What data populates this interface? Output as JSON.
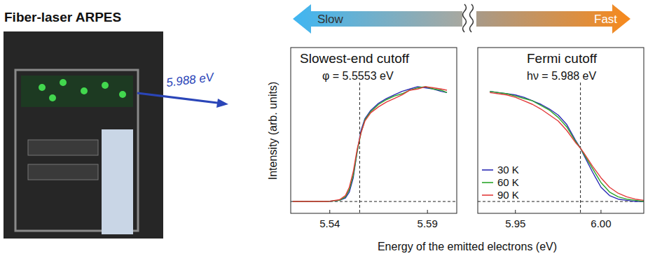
{
  "title": "Fiber-laser ARPES",
  "photo_label": "5.988 eV",
  "speed_arrow": {
    "left": "Slow",
    "right": "Fast"
  },
  "x_label": "Energy of the emitted electrons (eV)",
  "y_label": "Intensity (arb. units)",
  "chart_data": [
    {
      "type": "line",
      "title": "Slowest-end cutoff",
      "annotation": "φ = 5.5553 eV",
      "x": [
        5.521,
        5.527,
        5.533,
        5.539,
        5.545,
        5.548,
        5.55,
        5.552,
        5.554,
        5.556,
        5.558,
        5.561,
        5.565,
        5.569,
        5.573,
        5.577,
        5.581,
        5.585,
        5.589,
        5.593,
        5.597,
        5.6
      ],
      "series": [
        {
          "color": "#2b2bb5",
          "values": [
            0,
            0,
            0,
            0,
            0.01,
            0.03,
            0.08,
            0.2,
            0.42,
            0.6,
            0.7,
            0.77,
            0.83,
            0.87,
            0.9,
            0.93,
            0.95,
            0.97,
            0.96,
            0.95,
            0.93,
            0.92
          ]
        },
        {
          "color": "#2aa52a",
          "values": [
            0,
            0,
            0,
            0,
            0.01,
            0.04,
            0.1,
            0.22,
            0.42,
            0.58,
            0.69,
            0.76,
            0.82,
            0.86,
            0.89,
            0.91,
            0.94,
            0.96,
            0.97,
            0.95,
            0.94,
            0.92
          ]
        },
        {
          "color": "#e23a3a",
          "values": [
            0,
            0,
            0,
            0,
            0.015,
            0.05,
            0.12,
            0.25,
            0.44,
            0.58,
            0.68,
            0.75,
            0.8,
            0.84,
            0.87,
            0.9,
            0.94,
            0.95,
            0.97,
            0.96,
            0.95,
            0.94
          ]
        }
      ],
      "xlim": [
        5.52,
        5.605
      ],
      "xticks": [
        5.54,
        5.59
      ],
      "ylim": [
        -0.1,
        1.3
      ],
      "tick_labels": "x",
      "cutoff_energy": 5.5553,
      "baseline": 0
    },
    {
      "type": "line",
      "title": "Fermi cutoff",
      "annotation": "hν = 5.988 eV",
      "x": [
        5.935,
        5.94,
        5.945,
        5.95,
        5.955,
        5.96,
        5.965,
        5.97,
        5.975,
        5.98,
        5.985,
        5.988,
        5.99,
        5.995,
        6.0,
        6.005,
        6.01,
        6.015,
        6.02,
        6.025
      ],
      "series": [
        {
          "name": "30 K",
          "color": "#2b2bb5",
          "values": [
            0.93,
            0.92,
            0.91,
            0.9,
            0.88,
            0.85,
            0.82,
            0.78,
            0.73,
            0.65,
            0.52,
            0.45,
            0.39,
            0.25,
            0.12,
            0.05,
            0.02,
            0.01,
            0,
            0
          ]
        },
        {
          "name": "60 K",
          "color": "#2aa52a",
          "values": [
            0.93,
            0.92,
            0.91,
            0.89,
            0.87,
            0.85,
            0.81,
            0.77,
            0.71,
            0.63,
            0.51,
            0.45,
            0.4,
            0.28,
            0.16,
            0.08,
            0.04,
            0.02,
            0.01,
            0
          ]
        },
        {
          "name": "90 K",
          "color": "#e23a3a",
          "values": [
            0.92,
            0.91,
            0.9,
            0.88,
            0.85,
            0.82,
            0.78,
            0.73,
            0.68,
            0.6,
            0.5,
            0.45,
            0.41,
            0.3,
            0.2,
            0.12,
            0.07,
            0.04,
            0.02,
            0.01
          ]
        }
      ],
      "xlim": [
        5.928,
        6.025
      ],
      "xticks": [
        5.95,
        {
          "value": 6.0,
          "label": "6.00"
        }
      ],
      "ylim": [
        -0.1,
        1.3
      ],
      "tick_labels": "x",
      "legend": "lower left",
      "cutoff_energy": 5.988,
      "baseline": 0
    }
  ]
}
